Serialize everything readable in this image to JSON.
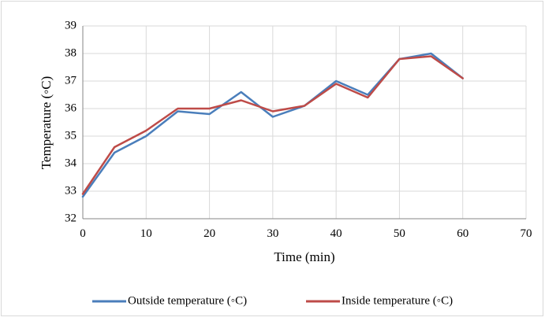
{
  "chart_data": {
    "type": "line",
    "title": "",
    "xlabel": "Time (min)",
    "ylabel": "Temperature (◦C)",
    "xlim": [
      0,
      70
    ],
    "ylim": [
      32,
      39
    ],
    "x_ticks": [
      0,
      10,
      20,
      30,
      40,
      50,
      60,
      70
    ],
    "y_ticks": [
      32,
      33,
      34,
      35,
      36,
      37,
      38,
      39
    ],
    "grid": true,
    "legend_position": "bottom",
    "x": [
      0,
      5,
      10,
      15,
      20,
      25,
      30,
      35,
      40,
      45,
      50,
      55,
      60
    ],
    "series": [
      {
        "name": "Outside temperature (◦C)",
        "color": "#4a7ebb",
        "values": [
          32.8,
          34.4,
          35.0,
          35.9,
          35.8,
          36.6,
          35.7,
          36.1,
          37.0,
          36.5,
          37.8,
          38.0,
          37.1
        ]
      },
      {
        "name": "Inside temperature (◦C)",
        "color": "#be4b48",
        "values": [
          32.9,
          34.6,
          35.2,
          36.0,
          36.0,
          36.3,
          35.9,
          36.1,
          36.9,
          36.4,
          37.8,
          37.9,
          37.1
        ]
      }
    ]
  }
}
